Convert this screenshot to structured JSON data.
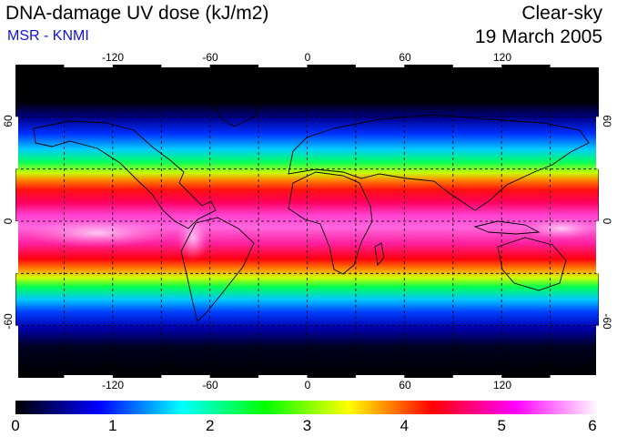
{
  "header": {
    "title": "DNA-damage UV dose (kJ/m2)",
    "subtitle": "MSR - KNMI",
    "mode": "Clear-sky",
    "date": "19 March 2005"
  },
  "map": {
    "lon_range": [
      -180,
      180
    ],
    "lat_range": [
      -90,
      90
    ],
    "lon_ticks": [
      "-120",
      "-60",
      "0",
      "60",
      "120"
    ],
    "lat_ticks": [
      "60",
      "0",
      "-60"
    ],
    "gridlines": true,
    "grid_style": "dashed"
  },
  "colorbar": {
    "min": 0,
    "max": 6,
    "labels": [
      "0",
      "1",
      "2",
      "3",
      "4",
      "5",
      "6"
    ],
    "colors": [
      "#000000",
      "#0000ff",
      "#00ffff",
      "#00ff00",
      "#ffff00",
      "#ff0000",
      "#ff00ff",
      "#ffffff"
    ]
  }
}
